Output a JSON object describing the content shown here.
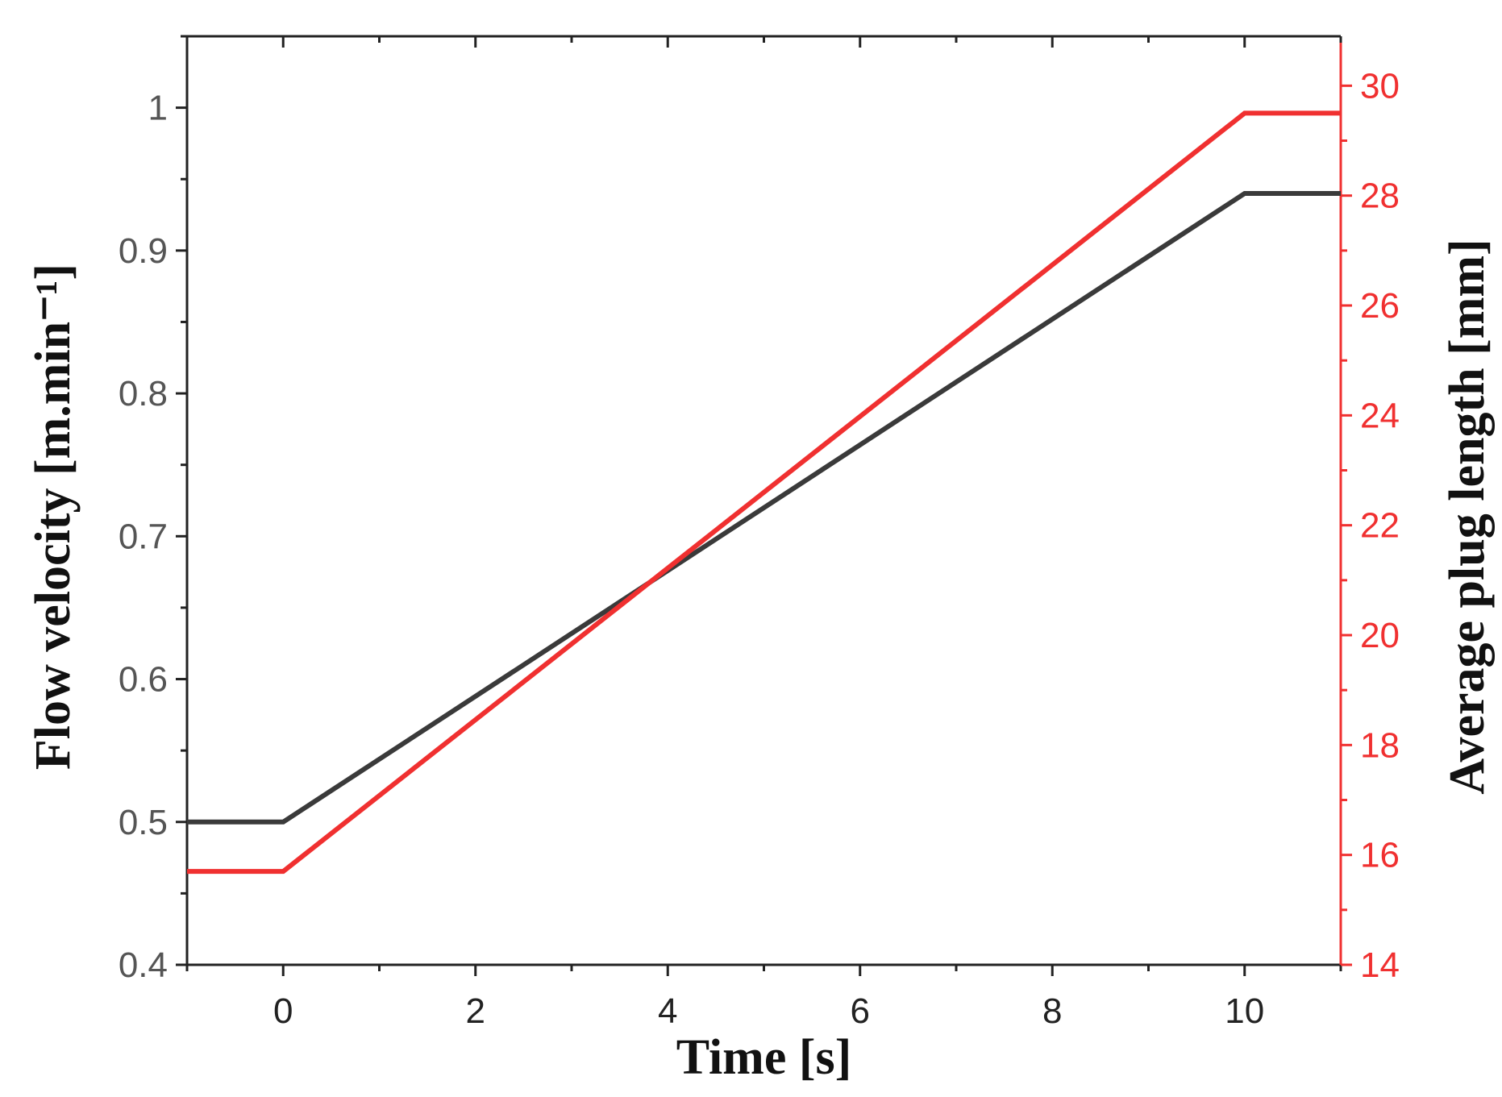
{
  "chart_data": {
    "type": "line",
    "title": "",
    "xlabel": "Time [s]",
    "ylabel_left": "Flow velocity [m.min⁻¹]",
    "ylabel_right": "Average plug length [mm]",
    "xlim": [
      -1,
      11
    ],
    "ylim_left": [
      0.4,
      1.05
    ],
    "ylim_right": [
      14,
      30.9
    ],
    "x_ticks": [
      0,
      2,
      4,
      6,
      8,
      10
    ],
    "x_tick_labels": [
      "0",
      "2",
      "4",
      "6",
      "8",
      "10"
    ],
    "y_left_ticks": [
      0.4,
      0.5,
      0.6,
      0.7,
      0.8,
      0.9,
      1.0
    ],
    "y_left_tick_labels": [
      "0.4",
      "0.5",
      "0.6",
      "0.7",
      "0.8",
      "0.9",
      "1"
    ],
    "y_right_ticks": [
      14,
      16,
      18,
      20,
      22,
      24,
      26,
      28,
      30
    ],
    "y_right_tick_labels": [
      "14",
      "16",
      "18",
      "20",
      "22",
      "24",
      "26",
      "28",
      "30"
    ],
    "grid": false,
    "legend": "none",
    "series": [
      {
        "axis": "left",
        "color": "#3a3a3a",
        "x": [
          -1,
          0,
          10,
          11
        ],
        "y": [
          0.5,
          0.5,
          0.94,
          0.94
        ]
      },
      {
        "axis": "right",
        "color": "#f03030",
        "x": [
          -1,
          0,
          10,
          11
        ],
        "y": [
          15.7,
          15.7,
          29.5,
          29.5
        ]
      }
    ]
  },
  "colors": {
    "axis_black": "#222222",
    "tick_label_gray": "#555555",
    "right_axis_red": "#f03030"
  }
}
